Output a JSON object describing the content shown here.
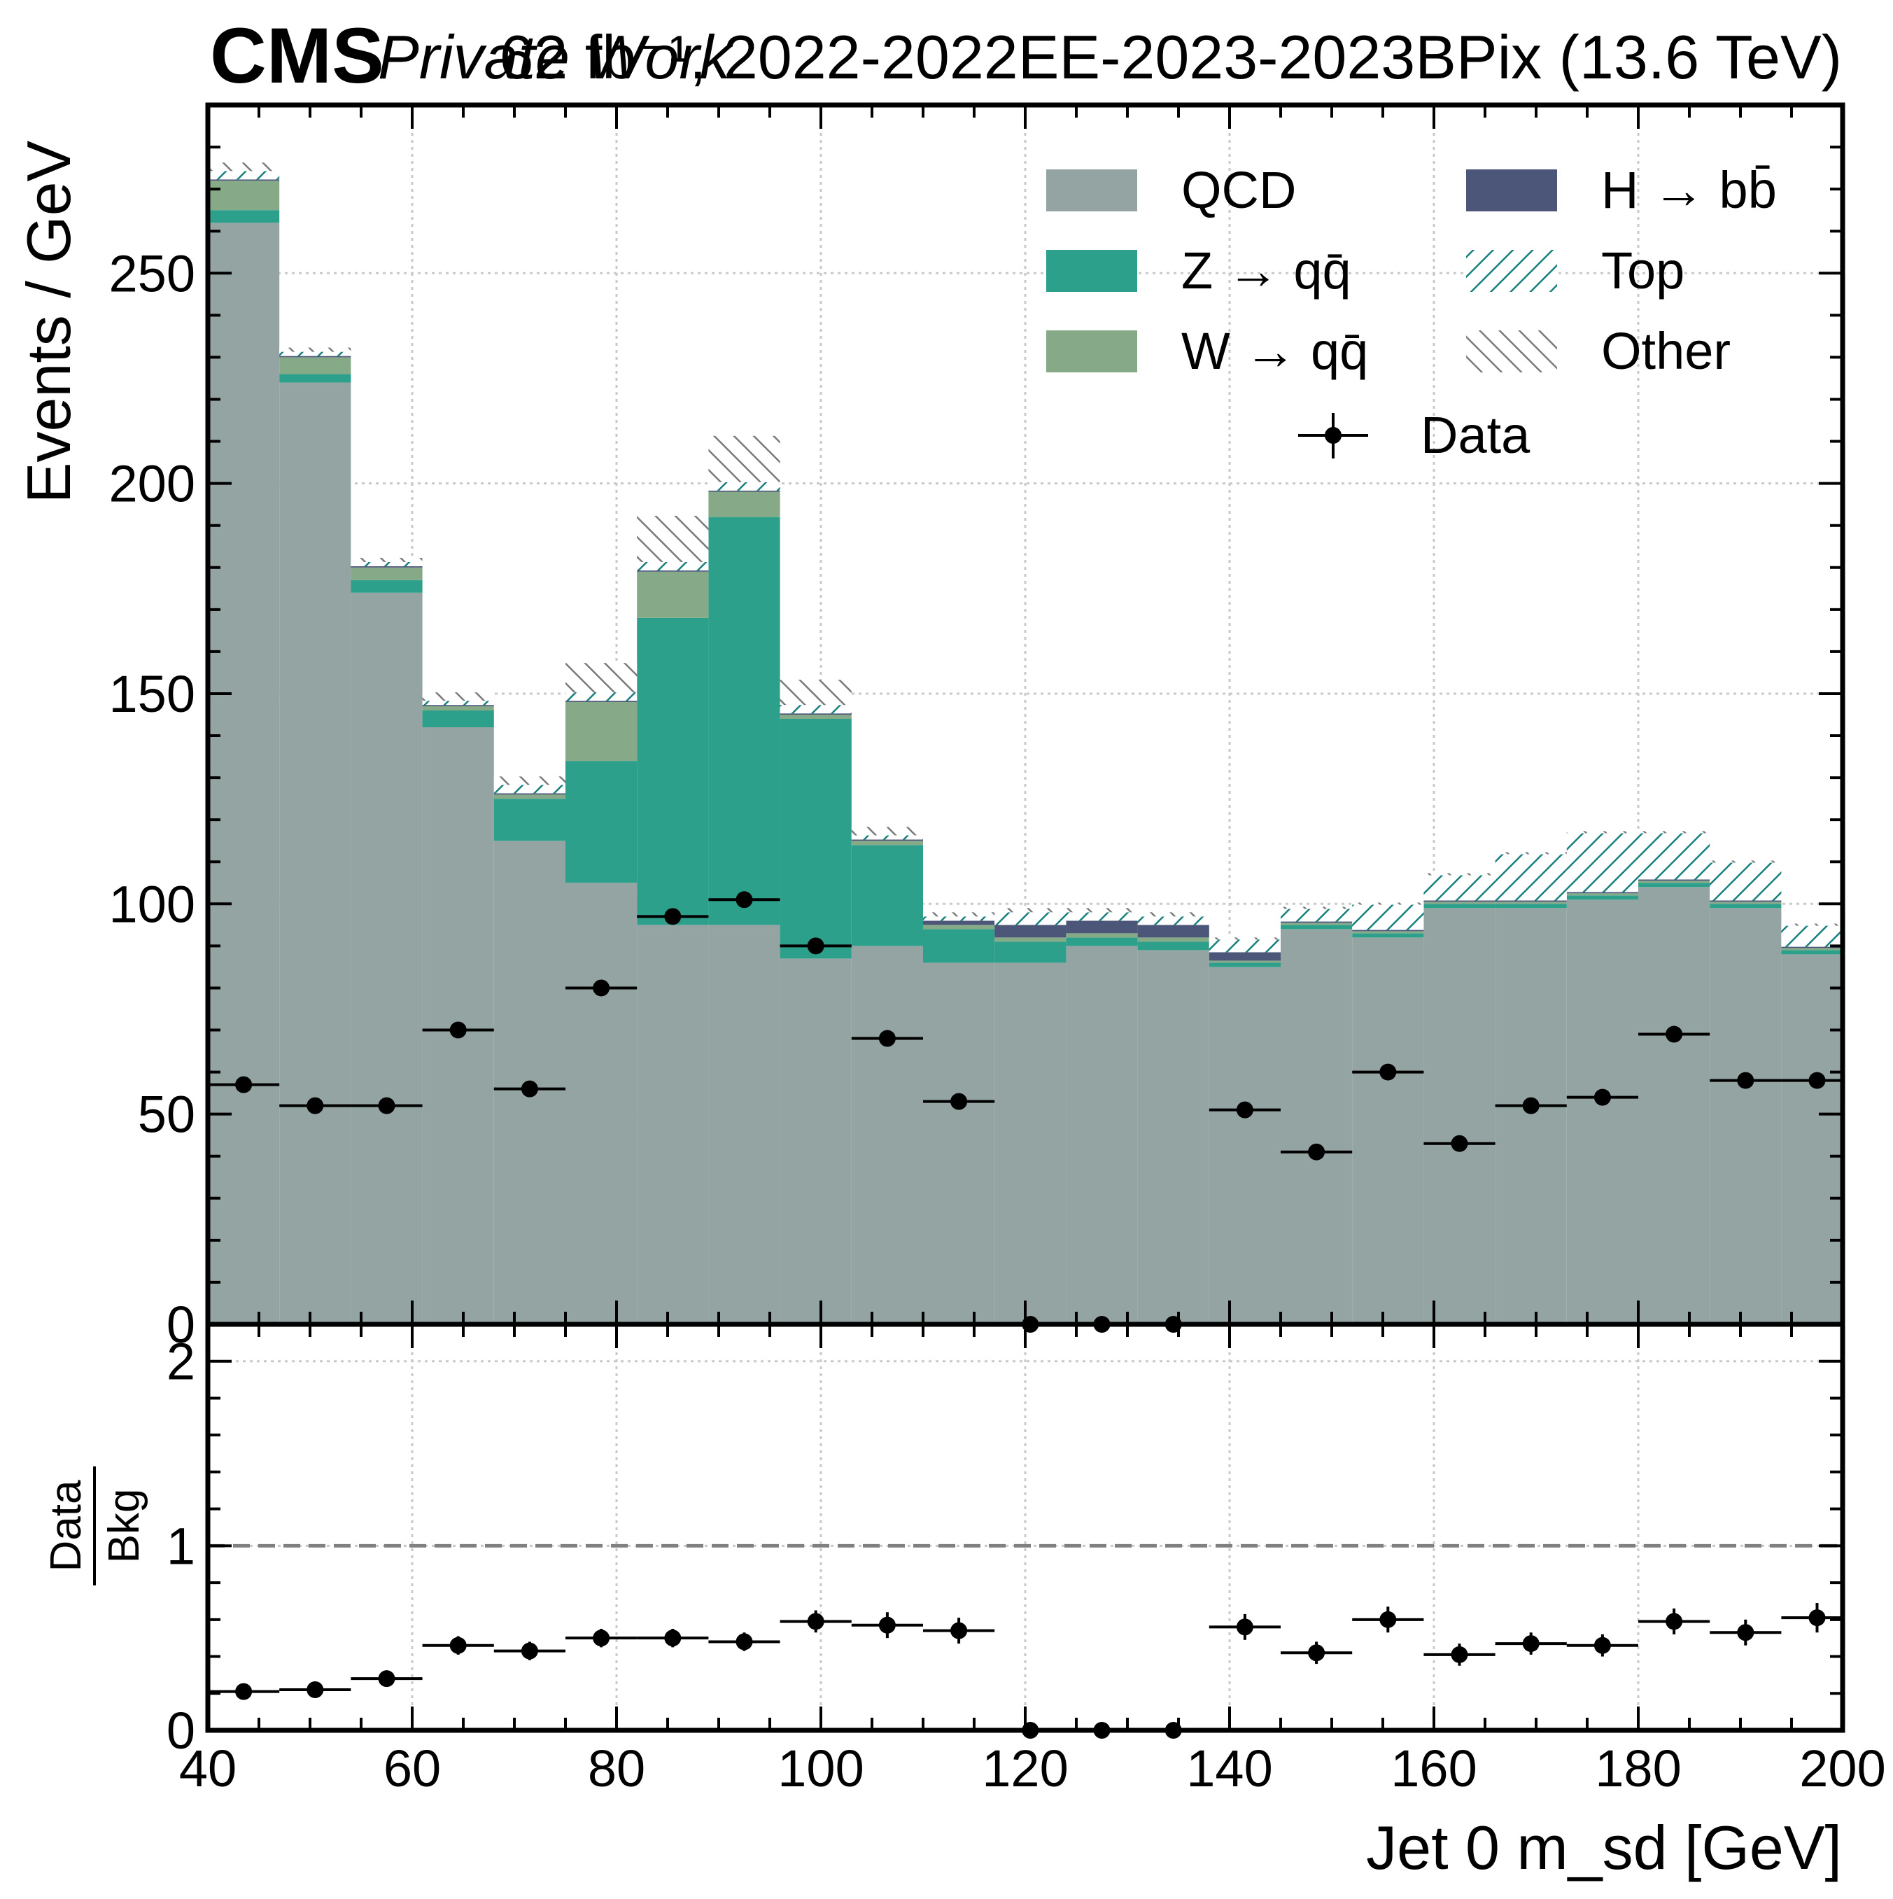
{
  "header": {
    "cms_label": "CMS",
    "private_label": "Private Work",
    "lumi_label": "62 fb⁻¹, 2022-2022EE-2023-2023BPix (13.6 TeV)"
  },
  "colors": {
    "qcd": "#94a4a2",
    "zqq": "#2ca08a",
    "wqq": "#86aa88",
    "hbb": "#4b5678",
    "top_hatch": "#17807e",
    "other_hatch": "#7a7a7a",
    "data": "#000000",
    "grid": "#c8c8c8",
    "ratio_line": "#808080"
  },
  "chart_data": [
    {
      "type": "bar",
      "stacked": true,
      "panel": "main",
      "xlabel": "Jet 0 m_sd [GeV]",
      "ylabel": "Events / GeV",
      "xlim": [
        40,
        200
      ],
      "ylim": [
        0,
        290
      ],
      "x_ticks": [
        40,
        60,
        80,
        100,
        120,
        140,
        160,
        180,
        200
      ],
      "y_ticks": [
        0,
        50,
        100,
        150,
        200,
        250
      ],
      "grid": true,
      "legend_position": "top-right",
      "bin_edges": [
        40,
        47,
        54,
        61,
        68,
        75,
        82,
        89,
        96,
        103,
        110,
        117,
        124,
        131,
        138,
        145,
        152,
        159,
        166,
        173,
        180,
        187,
        194,
        201
      ],
      "series": [
        {
          "name": "QCD",
          "legend_label": "QCD",
          "color": "qcd",
          "style": "fill",
          "values": [
            262,
            224,
            174,
            142,
            115,
            105,
            95,
            95,
            87,
            90,
            86,
            86,
            90,
            89,
            85,
            94,
            92,
            99,
            99,
            101,
            104,
            99,
            88
          ]
        },
        {
          "name": "Z→qq̄",
          "legend_label": "Z → qq̄",
          "color": "zqq",
          "style": "fill",
          "values": [
            3,
            2,
            3,
            4,
            10,
            29,
            73,
            97,
            57,
            24,
            8,
            5,
            2,
            2,
            1,
            1,
            1,
            1,
            1,
            1,
            1,
            1,
            1
          ]
        },
        {
          "name": "W→qq̄",
          "legend_label": "W → qq̄",
          "color": "wqq",
          "style": "fill",
          "values": [
            7,
            4,
            3,
            1,
            1,
            14,
            11,
            6,
            1,
            1,
            1,
            1,
            1,
            1,
            0.5,
            0.5,
            0.5,
            0.5,
            0.5,
            0.5,
            0.5,
            0.5,
            0.5
          ]
        },
        {
          "name": "H→bb̄",
          "legend_label": "H → bb̄",
          "color": "hbb",
          "style": "fill",
          "values": [
            0.3,
            0.3,
            0.3,
            0.3,
            0.3,
            0.3,
            0.3,
            0.3,
            0.3,
            0.3,
            1,
            3,
            3,
            3,
            2,
            0.3,
            0.3,
            0.3,
            0.3,
            0.3,
            0.3,
            0.3,
            0.3
          ]
        },
        {
          "name": "Top",
          "legend_label": "Top",
          "color": "top_hatch",
          "style": "hatch",
          "values": [
            2,
            1,
            1,
            1,
            2,
            2,
            2,
            2,
            2,
            1,
            1,
            3,
            2,
            2,
            3,
            3,
            6,
            6,
            11,
            14,
            11,
            9,
            5
          ]
        },
        {
          "name": "Other",
          "legend_label": "Other",
          "color": "other_hatch",
          "style": "hatch",
          "values": [
            2,
            1,
            1,
            2,
            2,
            7,
            11,
            11,
            6,
            2,
            1,
            1,
            1,
            1,
            0.5,
            0.5,
            0.5,
            0.5,
            0.5,
            0.5,
            0.5,
            0.5,
            0.5
          ]
        }
      ],
      "data_points": {
        "name": "Data",
        "legend_label": "Data",
        "x": [
          43.5,
          50.5,
          57.5,
          64.5,
          71.5,
          78.5,
          85.5,
          92.5,
          99.5,
          106.5,
          113.5,
          120.5,
          127.5,
          134.5,
          141.5,
          148.5,
          155.5,
          162.5,
          169.5,
          176.5,
          183.5,
          190.5,
          197.5
        ],
        "y": [
          57,
          52,
          52,
          70,
          56,
          80,
          97,
          101,
          90,
          68,
          53,
          0,
          0,
          0,
          51,
          41,
          60,
          43,
          52,
          54,
          69,
          58,
          58
        ]
      }
    },
    {
      "type": "scatter",
      "panel": "ratio",
      "xlabel": "Jet 0 m_sd [GeV]",
      "ylabel_num": "Data",
      "ylabel_den": "Bkg",
      "xlim": [
        40,
        200
      ],
      "ylim": [
        0,
        2.2
      ],
      "y_ticks": [
        0,
        1,
        2
      ],
      "reference_line": 1,
      "x": [
        43.5,
        50.5,
        57.5,
        64.5,
        71.5,
        78.5,
        85.5,
        92.5,
        99.5,
        106.5,
        113.5,
        120.5,
        127.5,
        134.5,
        141.5,
        148.5,
        155.5,
        162.5,
        169.5,
        176.5,
        183.5,
        190.5,
        197.5
      ],
      "y": [
        0.21,
        0.22,
        0.28,
        0.46,
        0.43,
        0.5,
        0.5,
        0.48,
        0.59,
        0.57,
        0.54,
        0.0,
        0.0,
        0.0,
        0.56,
        0.42,
        0.6,
        0.41,
        0.47,
        0.46,
        0.59,
        0.53,
        0.61
      ],
      "yerr": [
        0.03,
        0.03,
        0.04,
        0.05,
        0.05,
        0.05,
        0.05,
        0.05,
        0.06,
        0.07,
        0.07,
        0,
        0,
        0,
        0.07,
        0.06,
        0.07,
        0.06,
        0.06,
        0.06,
        0.07,
        0.07,
        0.08
      ]
    }
  ]
}
